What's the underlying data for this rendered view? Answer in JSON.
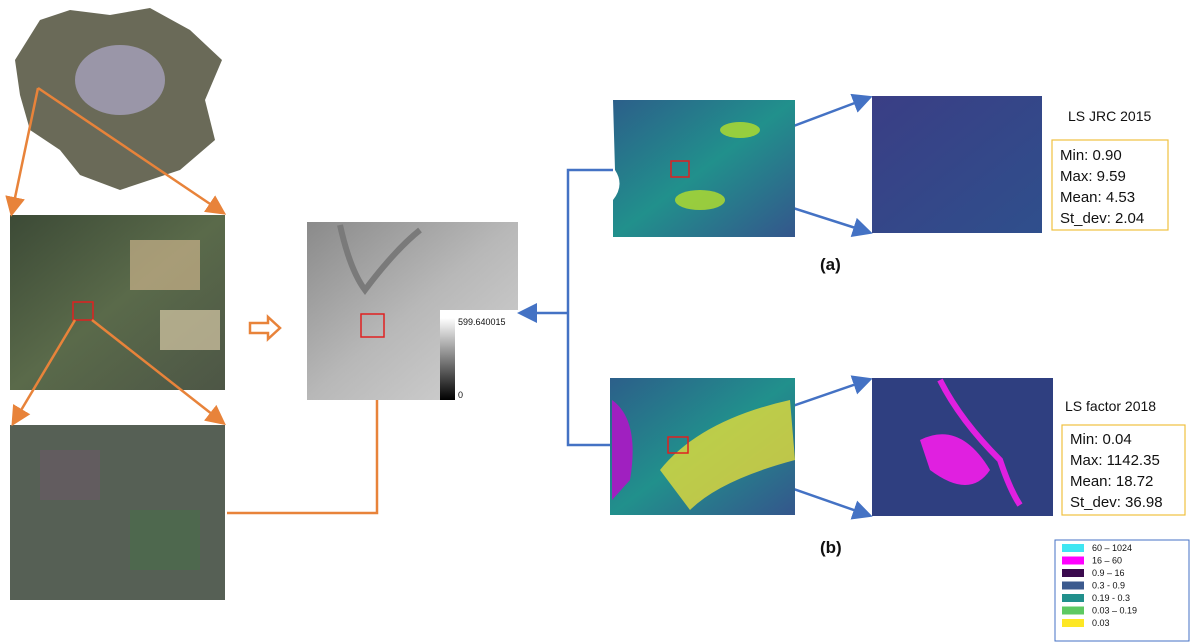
{
  "colorbar": {
    "max_label": "599.640015",
    "min_label": "0"
  },
  "panel_a": {
    "title": "LS JRC 2015",
    "stats": [
      "Min: 0.90",
      "Max: 9.59",
      "Mean: 4.53",
      "St_dev: 2.04"
    ],
    "caption": "(a)"
  },
  "panel_b": {
    "title": "LS factor 2018",
    "stats": [
      "Min: 0.04",
      "Max: 1142.35",
      "Mean: 18.72",
      "St_dev: 36.98"
    ],
    "caption": "(b)"
  },
  "legend": [
    {
      "label": "60 – 1024",
      "color": "#3fe6f2"
    },
    {
      "label": "16 – 60",
      "color": "#ff00ff"
    },
    {
      "label": "0.9 – 16",
      "color": "#3b0a4e"
    },
    {
      "label": "0.3  - 0.9",
      "color": "#3c5a8e"
    },
    {
      "label": "0.19 - 0.3",
      "color": "#21908c"
    },
    {
      "label": "0.03 – 0.19",
      "color": "#5ec962"
    },
    {
      "label": "0.03",
      "color": "#fde725"
    }
  ]
}
